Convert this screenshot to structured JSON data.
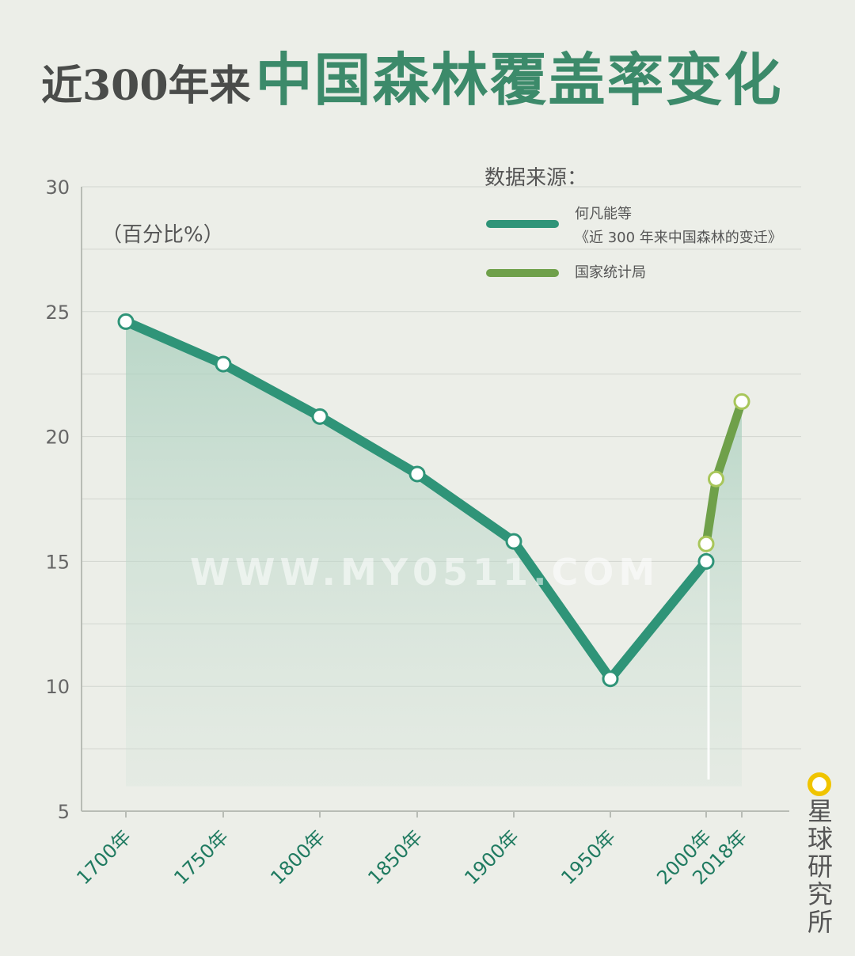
{
  "header": {
    "title_prefix": "近300年来",
    "title_main": "中国森林覆盖率变化"
  },
  "unit_label": "（百分比%）",
  "legend": {
    "title": "数据来源：",
    "items": [
      {
        "line1": "何凡能等",
        "line2": "《近 300 年来中国森林的变迁》",
        "color": "#2f9478"
      },
      {
        "line1": "国家统计局",
        "line2": "",
        "color": "#6fa04a"
      }
    ]
  },
  "watermark": "WWW.MY0511.COM",
  "brand": "星球研究所",
  "chart_data": {
    "type": "line",
    "ylim": [
      5,
      30
    ],
    "y_ticks": [
      5,
      10,
      15,
      20,
      25,
      30
    ],
    "x_ticks": [
      {
        "value": 1700,
        "label": "1700年"
      },
      {
        "value": 1750,
        "label": "1750年"
      },
      {
        "value": 1800,
        "label": "1800年"
      },
      {
        "value": 1850,
        "label": "1850年"
      },
      {
        "value": 1900,
        "label": "1900年"
      },
      {
        "value": 1950,
        "label": "1950年"
      },
      {
        "value": 2000,
        "label": "2000年"
      },
      {
        "value": 2018,
        "label": "2018年"
      }
    ],
    "series": [
      {
        "name": "何凡能等《近 300 年来中国森林的变迁》",
        "color": "#2f9478",
        "x": [
          1700,
          1750,
          1800,
          1850,
          1900,
          1950,
          2000
        ],
        "y": [
          24.6,
          22.9,
          20.8,
          18.5,
          15.8,
          10.3,
          15.0
        ]
      },
      {
        "name": "国家统计局",
        "color": "#6fa04a",
        "x": [
          2000,
          2005,
          2018
        ],
        "y": [
          15.7,
          18.3,
          21.4
        ]
      }
    ]
  }
}
